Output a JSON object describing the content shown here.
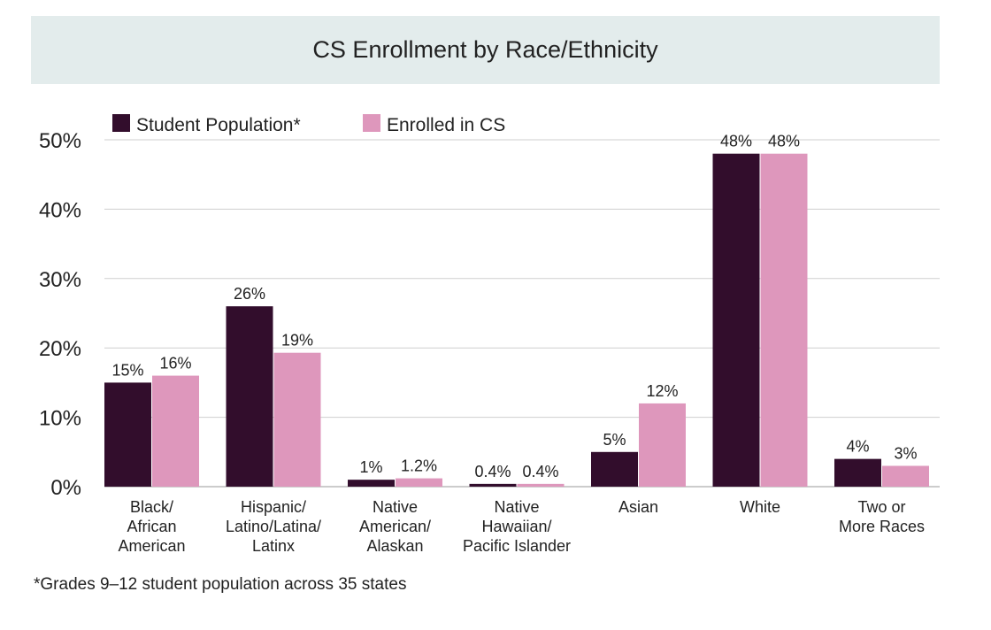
{
  "chart_data": {
    "type": "bar",
    "title": "CS Enrollment by Race/Ethnicity",
    "xlabel": "",
    "ylabel": "",
    "ylim": [
      0,
      50
    ],
    "yticks": [
      "0%",
      "10%",
      "20%",
      "30%",
      "40%",
      "50%"
    ],
    "grid": true,
    "legend_position": "top-left",
    "categories": [
      [
        "Black/",
        "African",
        "American"
      ],
      [
        "Hispanic/",
        "Latino/Latina/",
        "Latinx"
      ],
      [
        "Native",
        "American/",
        "Alaskan"
      ],
      [
        "Native",
        "Hawaiian/",
        "Pacific Islander"
      ],
      [
        "Asian"
      ],
      [
        "White"
      ],
      [
        "Two or",
        "More Races"
      ]
    ],
    "series": [
      {
        "name": "Student Population*",
        "color": "#320d2c",
        "values": [
          15,
          26,
          1,
          0.4,
          5,
          48,
          4
        ],
        "labels": [
          "15%",
          "26%",
          "1%",
          "0.4%",
          "5%",
          "48%",
          "4%"
        ]
      },
      {
        "name": "Enrolled in CS",
        "color": "#de97bc",
        "values": [
          16,
          19.3,
          1.2,
          0.4,
          12,
          48,
          3
        ],
        "labels": [
          "16%",
          "19%",
          "1.2%",
          "0.4%",
          "12%",
          "48%",
          "3%"
        ]
      }
    ],
    "footnote": "*Grades 9–12 student population across 35 states"
  }
}
